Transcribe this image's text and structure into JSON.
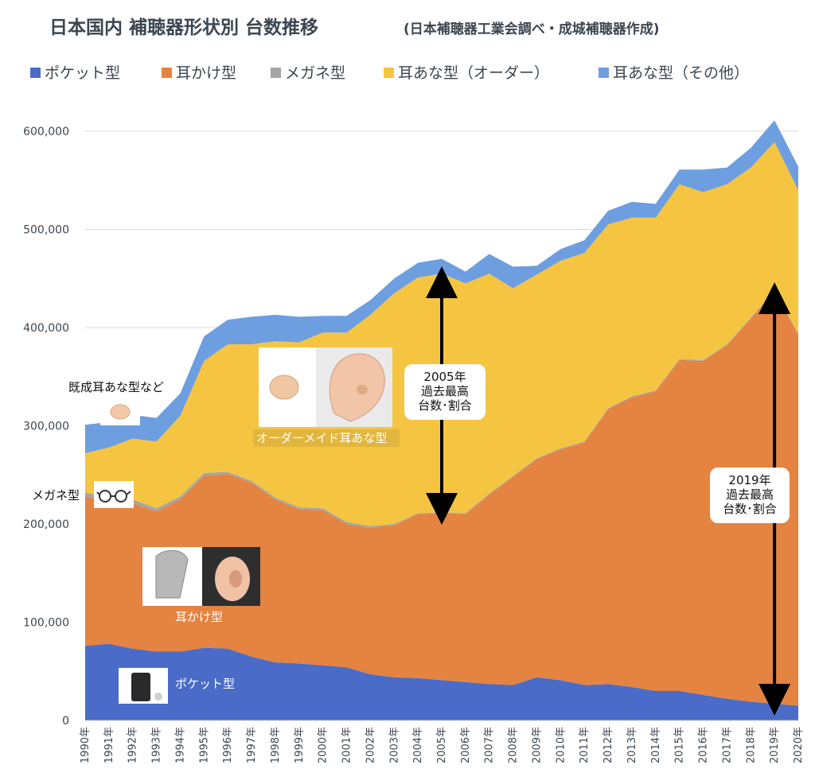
{
  "chart_data": {
    "type": "area",
    "stacked": true,
    "title": "日本国内 補聴器形状別 台数推移",
    "subtitle": "(日本補聴器工業会調べ・成城補聴器作成)",
    "xlabel": "",
    "ylabel": "",
    "ylim": [
      0,
      600000
    ],
    "yticks": [
      "0",
      "100,000",
      "200,000",
      "300,000",
      "400,000",
      "500,000",
      "600,000"
    ],
    "grid": "horizontal",
    "legend_placement": "top",
    "categories": [
      "1990年",
      "1991年",
      "1992年",
      "1993年",
      "1994年",
      "1995年",
      "1996年",
      "1997年",
      "1998年",
      "1999年",
      "2000年",
      "2001年",
      "2002年",
      "2003年",
      "2004年",
      "2005年",
      "2006年",
      "2007年",
      "2008年",
      "2009年",
      "2010年",
      "2011年",
      "2012年",
      "2013年",
      "2014年",
      "2015年",
      "2016年",
      "2017年",
      "2018年",
      "2019年",
      "2020年"
    ],
    "series": [
      {
        "name": "ポケット型",
        "color": "#4a6cc8",
        "values": [
          76000,
          78000,
          73000,
          70000,
          70000,
          74000,
          73000,
          65000,
          59000,
          58000,
          56000,
          54000,
          47000,
          44000,
          43000,
          41000,
          39000,
          37000,
          36000,
          44000,
          41000,
          36000,
          37000,
          34000,
          30000,
          30000,
          26000,
          22000,
          19000,
          17000,
          15000
        ]
      },
      {
        "name": "耳かけ型",
        "color": "#e58340",
        "values": [
          152000,
          146000,
          148000,
          143000,
          155000,
          175000,
          178000,
          177000,
          166000,
          157000,
          158000,
          146000,
          149000,
          155000,
          167000,
          170000,
          171000,
          193000,
          212000,
          222000,
          235000,
          247000,
          280000,
          295000,
          305000,
          337000,
          340000,
          360000,
          390000,
          420000,
          378000
        ]
      },
      {
        "name": "メガネ型",
        "color": "#a5a5a5",
        "values": [
          4000,
          4000,
          4000,
          3000,
          3000,
          3000,
          2000,
          2000,
          2000,
          2000,
          2000,
          2000,
          2000,
          1000,
          1000,
          1000,
          1000,
          1000,
          1000,
          1000,
          1000,
          1000,
          1000,
          1000,
          1000,
          1000,
          1000,
          1000,
          1000,
          1000,
          1000
        ]
      },
      {
        "name": "耳あな型（オーダー）",
        "color": "#f5c542",
        "values": [
          40000,
          50000,
          62000,
          68000,
          82000,
          114000,
          130000,
          139000,
          159000,
          168000,
          179000,
          193000,
          215000,
          235000,
          240000,
          243000,
          234000,
          224000,
          191000,
          187000,
          191000,
          192000,
          187000,
          182000,
          176000,
          178000,
          171000,
          163000,
          153000,
          151000,
          146000
        ]
      },
      {
        "name": "耳あな型（その他）",
        "color": "#6d9ee0",
        "values": [
          29000,
          26000,
          24000,
          24000,
          23000,
          25000,
          25000,
          28000,
          27000,
          26000,
          17000,
          17000,
          15000,
          15000,
          15000,
          15000,
          12000,
          20000,
          22000,
          9000,
          12000,
          13000,
          14000,
          16000,
          14000,
          15000,
          23000,
          17000,
          20000,
          22000,
          24000
        ]
      }
    ],
    "annotations": [
      {
        "text": "既成耳あな型など"
      },
      {
        "text": "メガネ型"
      },
      {
        "text": "オーダーメイド耳あな型"
      },
      {
        "text": "耳かけ型"
      },
      {
        "text": "ポケット型"
      },
      {
        "year": "2005年",
        "lines": [
          "2005年",
          "過去最高",
          "台数･割合"
        ]
      },
      {
        "year": "2019年",
        "lines": [
          "2019年",
          "過去最高",
          "台数･割合"
        ]
      }
    ]
  }
}
